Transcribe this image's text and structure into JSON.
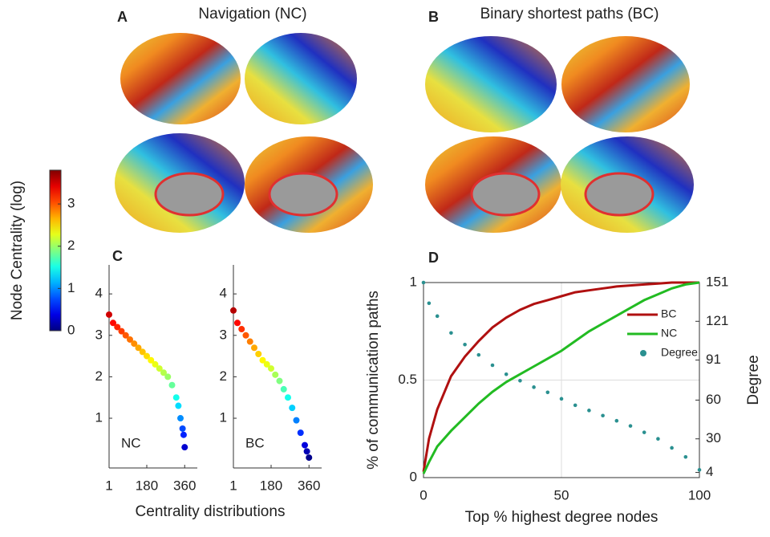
{
  "panels": {
    "A": {
      "label": "A",
      "title": "Navigation (NC)"
    },
    "B": {
      "label": "B",
      "title": "Binary shortest paths (BC)"
    },
    "C": {
      "label": "C",
      "xlabel": "Centrality distributions"
    },
    "D": {
      "label": "D"
    }
  },
  "colorbar": {
    "label": "Node Centrality (log)",
    "colormap": "jet",
    "lim": [
      0,
      3.8
    ],
    "ticks": [
      0,
      1,
      2,
      3
    ]
  },
  "chart_data": [
    {
      "type": "scatter",
      "annotation": "NC",
      "x": [
        1,
        20,
        40,
        60,
        80,
        100,
        120,
        140,
        160,
        180,
        200,
        220,
        240,
        260,
        280,
        300,
        320,
        330,
        340,
        350,
        355,
        360
      ],
      "values": [
        3.5,
        3.3,
        3.2,
        3.1,
        3.0,
        2.9,
        2.8,
        2.7,
        2.6,
        2.5,
        2.4,
        2.3,
        2.2,
        2.1,
        2.0,
        1.8,
        1.5,
        1.3,
        1.0,
        0.75,
        0.6,
        0.3
      ],
      "xlim": [
        1,
        420
      ],
      "xticks": [
        1,
        180,
        360
      ],
      "ylim": [
        -0.2,
        4.7
      ],
      "yticks": [
        1,
        2,
        3,
        4
      ]
    },
    {
      "type": "scatter",
      "annotation": "BC",
      "x": [
        1,
        20,
        40,
        60,
        80,
        100,
        120,
        140,
        160,
        180,
        200,
        220,
        240,
        260,
        280,
        300,
        320,
        340,
        350,
        360
      ],
      "values": [
        3.6,
        3.3,
        3.15,
        3.0,
        2.85,
        2.7,
        2.55,
        2.4,
        2.3,
        2.2,
        2.05,
        1.9,
        1.7,
        1.5,
        1.25,
        0.95,
        0.65,
        0.35,
        0.2,
        0.05
      ],
      "xlim": [
        1,
        420
      ],
      "xticks": [
        1,
        180,
        360
      ],
      "ylim": [
        -0.2,
        4.7
      ],
      "yticks": [
        1,
        2,
        3,
        4
      ]
    },
    {
      "type": "line",
      "xlabel": "Top % highest degree nodes",
      "ylabel": "% of communication paths",
      "y2label": "Degree",
      "x": [
        0,
        2,
        5,
        10,
        15,
        20,
        25,
        30,
        35,
        40,
        45,
        50,
        55,
        60,
        65,
        70,
        75,
        80,
        85,
        90,
        95,
        100
      ],
      "xlim": [
        0,
        100
      ],
      "xticks": [
        0,
        50,
        100
      ],
      "ylim": [
        0,
        1
      ],
      "yticks": [
        0,
        0.5,
        1
      ],
      "y2lim": [
        0,
        151
      ],
      "y2ticks": [
        4,
        30,
        60,
        91,
        121,
        151
      ],
      "grid": true,
      "legend": "right",
      "series": [
        {
          "name": "BC",
          "color": "#b01010",
          "type": "line",
          "values": [
            0.03,
            0.2,
            0.35,
            0.52,
            0.62,
            0.7,
            0.77,
            0.82,
            0.86,
            0.89,
            0.91,
            0.93,
            0.95,
            0.96,
            0.97,
            0.98,
            0.985,
            0.99,
            0.995,
            1.0,
            1.0,
            1.0
          ]
        },
        {
          "name": "NC",
          "color": "#22bb22",
          "type": "line",
          "values": [
            0.02,
            0.08,
            0.16,
            0.24,
            0.31,
            0.38,
            0.44,
            0.49,
            0.53,
            0.57,
            0.61,
            0.65,
            0.7,
            0.75,
            0.79,
            0.83,
            0.87,
            0.91,
            0.94,
            0.97,
            0.99,
            1.0
          ]
        },
        {
          "name": "Degree",
          "color": "#2a9090",
          "type": "scatter",
          "axis": "y2",
          "values": [
            151,
            135,
            125,
            112,
            103,
            95,
            87,
            80,
            75,
            70,
            66,
            61,
            56,
            52,
            48,
            44,
            40,
            35,
            30,
            23,
            16,
            6
          ]
        }
      ]
    }
  ]
}
